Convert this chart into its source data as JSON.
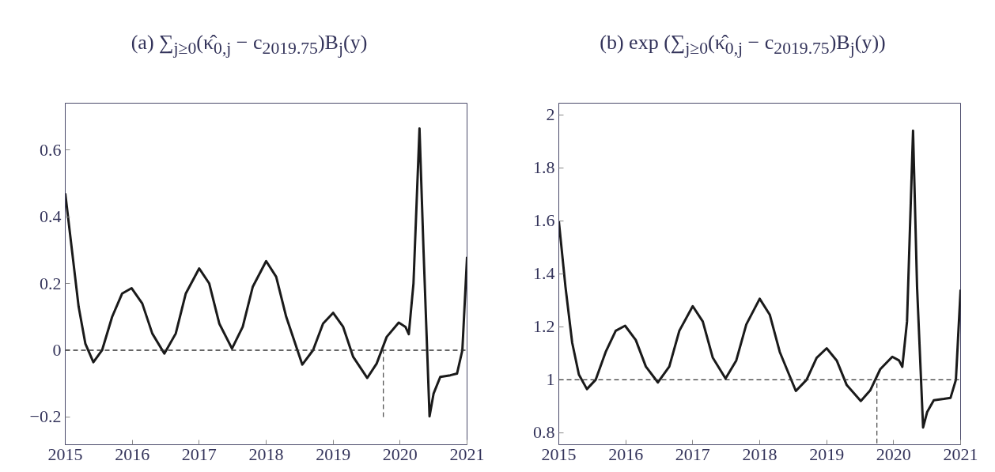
{
  "chart_data": [
    {
      "type": "line",
      "title": "(a) ∑$_{j≥0}$(κ̂$_{0,j}$ − c$_{2019.75}$)B$_{j}$(y)",
      "xlim": [
        2015,
        2021
      ],
      "ylim": [
        -0.283,
        0.74
      ],
      "xticks": [
        2015,
        2016,
        2017,
        2018,
        2019,
        2020,
        2021
      ],
      "yticks": [
        {
          "value": -0.2,
          "label": "−0.2"
        },
        0,
        0.2,
        0.4,
        0.6
      ],
      "grid": false,
      "ref_lines": [
        {
          "axis": "y",
          "value": 0,
          "color": "#333333",
          "line_style": "dashed"
        }
      ],
      "series": [
        {
          "color": "#1a1a1a",
          "line_style": "solid",
          "x": [
            2015,
            2015.1,
            2015.2,
            2015.3,
            2015.42,
            2015.55,
            2015.7,
            2015.85,
            2015.99,
            2016.15,
            2016.3,
            2016.48,
            2016.65,
            2016.8,
            2017.0,
            2017.15,
            2017.3,
            2017.49,
            2017.65,
            2017.8,
            2018.0,
            2018.15,
            2018.3,
            2018.54,
            2018.7,
            2018.85,
            2019.0,
            2019.15,
            2019.3,
            2019.51,
            2019.65,
            2019.8,
            2019.98,
            2020.08,
            2020.13,
            2020.2,
            2020.29,
            2020.35,
            2020.44,
            2020.5,
            2020.6,
            2020.75,
            2020.85,
            2020.93,
            2021
          ],
          "values": [
            0.47,
            0.3,
            0.13,
            0.02,
            -0.036,
            0.0,
            0.1,
            0.17,
            0.186,
            0.14,
            0.05,
            -0.01,
            0.05,
            0.17,
            0.245,
            0.2,
            0.08,
            0.005,
            0.07,
            0.19,
            0.267,
            0.22,
            0.1,
            -0.043,
            0.0,
            0.08,
            0.112,
            0.07,
            -0.02,
            -0.083,
            -0.04,
            0.04,
            0.083,
            0.07,
            0.048,
            0.2,
            0.664,
            0.3,
            -0.198,
            -0.13,
            -0.08,
            -0.075,
            -0.07,
            0.0,
            0.28
          ]
        },
        {
          "color": "#555555",
          "line_style": "dashed",
          "x": [
            2019.75,
            2019.75
          ],
          "values": [
            -0.2,
            0
          ]
        }
      ]
    },
    {
      "type": "line",
      "title": "(b) exp (∑$_{j≥0}$(κ̂$_{0,j}$ − c$_{2019.75}$)B$_{j}$(y))",
      "xlim": [
        2015,
        2021
      ],
      "ylim": [
        0.755,
        2.044
      ],
      "xticks": [
        2015,
        2016,
        2017,
        2018,
        2019,
        2020,
        2021
      ],
      "yticks": [
        0.8,
        1,
        1.2,
        1.4,
        1.6,
        1.8,
        2
      ],
      "grid": false,
      "ref_lines": [
        {
          "axis": "y",
          "value": 1,
          "color": "#333333",
          "line_style": "dashed"
        }
      ],
      "series": [
        {
          "color": "#1a1a1a",
          "line_style": "solid",
          "x": [
            2015,
            2015.1,
            2015.2,
            2015.3,
            2015.42,
            2015.55,
            2015.7,
            2015.85,
            2015.99,
            2016.15,
            2016.3,
            2016.48,
            2016.65,
            2016.8,
            2017.0,
            2017.15,
            2017.3,
            2017.49,
            2017.65,
            2017.8,
            2018.0,
            2018.15,
            2018.3,
            2018.54,
            2018.7,
            2018.85,
            2019.0,
            2019.15,
            2019.3,
            2019.51,
            2019.65,
            2019.8,
            2019.98,
            2020.08,
            2020.13,
            2020.2,
            2020.29,
            2020.35,
            2020.44,
            2020.5,
            2020.6,
            2020.75,
            2020.85,
            2020.93,
            2021
          ],
          "values": [
            1.6,
            1.35,
            1.14,
            1.02,
            0.965,
            1.0,
            1.105,
            1.185,
            1.204,
            1.15,
            1.05,
            0.99,
            1.05,
            1.185,
            1.278,
            1.22,
            1.083,
            1.005,
            1.073,
            1.209,
            1.306,
            1.246,
            1.105,
            0.958,
            1.0,
            1.083,
            1.119,
            1.073,
            0.98,
            0.92,
            0.96,
            1.04,
            1.087,
            1.073,
            1.049,
            1.22,
            1.94,
            1.35,
            0.82,
            0.878,
            0.923,
            0.928,
            0.932,
            1.0,
            1.34
          ]
        },
        {
          "color": "#555555",
          "line_style": "dashed",
          "x": [
            2019.75,
            2019.75
          ],
          "values": [
            0.76,
            1
          ]
        }
      ]
    }
  ]
}
